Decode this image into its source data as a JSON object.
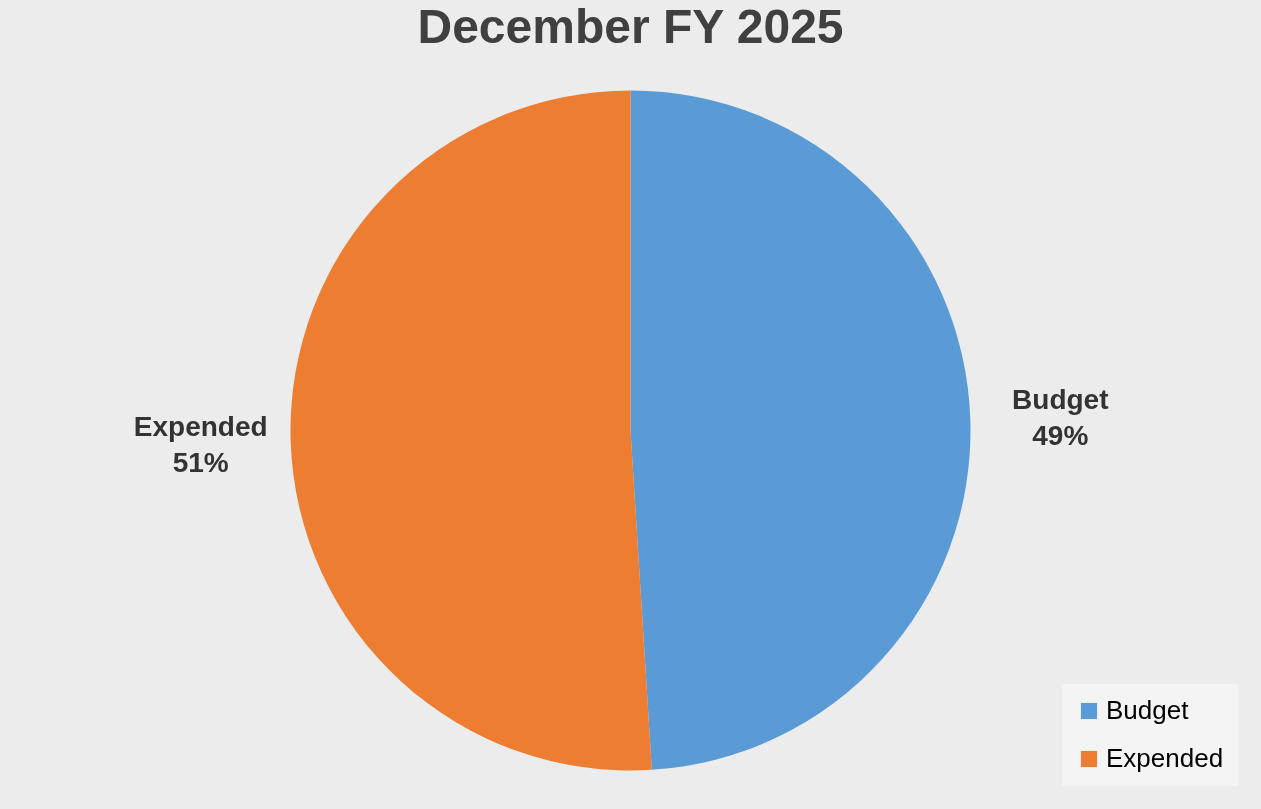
{
  "chart_data": {
    "type": "pie",
    "title": "December FY 2025",
    "categories": [
      "Budget",
      "Expended"
    ],
    "values": [
      49,
      51
    ],
    "colors": [
      "#5b9bd5",
      "#ed7d31"
    ],
    "value_labels": [
      "49%",
      "51%"
    ],
    "legend": "bottom right"
  }
}
